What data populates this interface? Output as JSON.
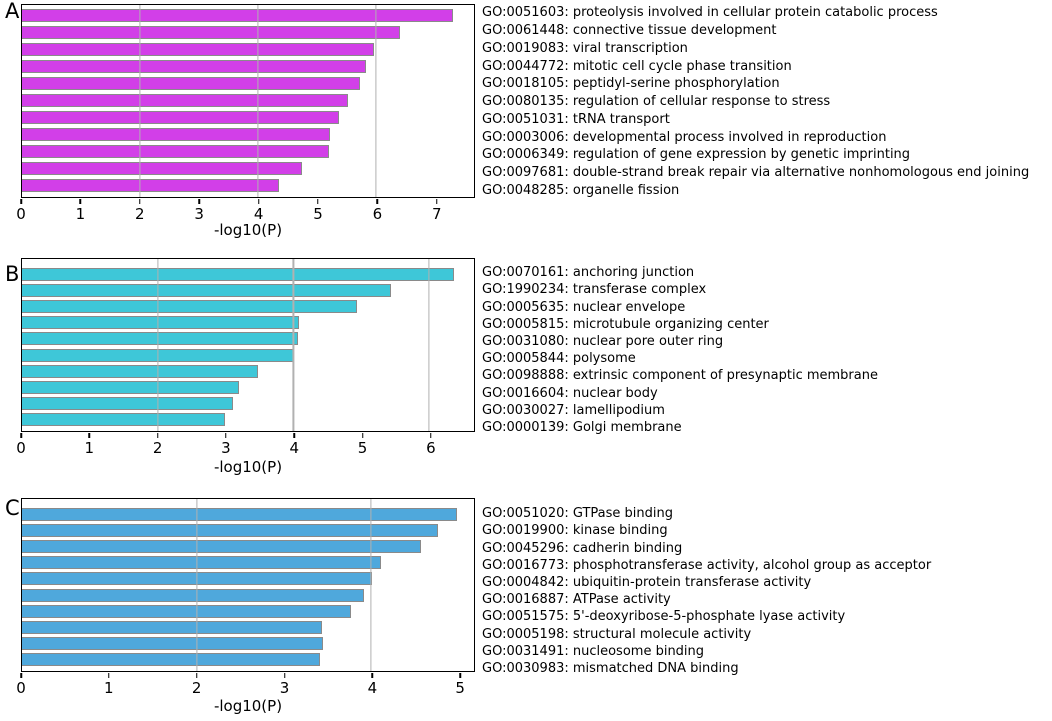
{
  "figure": {
    "background": "#ffffff",
    "frame_color": "#000000",
    "grid_color": "#b1b1b1",
    "bar_edge_color": "#8a8a8a"
  },
  "chart_data": [
    {
      "type": "bar",
      "panel": "A",
      "orientation": "horizontal",
      "xlabel": "-log10(P)",
      "bar_color": "#d23fe8",
      "xlim": [
        0,
        7.66
      ],
      "x_ticks": [
        0,
        1,
        2,
        3,
        4,
        5,
        6,
        7
      ],
      "gridline_x": [
        2,
        4,
        6
      ],
      "grid": "vertical gridlines drawn above bars",
      "legend": "none",
      "categories": [
        "GO:0051603: proteolysis involved in cellular protein catabolic process",
        "GO:0061448: connective tissue development",
        "GO:0019083: viral transcription",
        "GO:0044772: mitotic cell cycle phase transition",
        "GO:0018105: peptidyl-serine phosphorylation",
        "GO:0080135: regulation of cellular response to stress",
        "GO:0051031: tRNA transport",
        "GO:0003006: developmental process involved in reproduction",
        "GO:0006349: regulation of gene expression by genetic imprinting",
        "GO:0097681: double-strand break repair via alternative nonhomologous end joining",
        "GO:0048285: organelle fission"
      ],
      "values": [
        7.3,
        6.4,
        5.96,
        5.83,
        5.72,
        5.52,
        5.38,
        5.22,
        5.2,
        4.75,
        4.36
      ]
    },
    {
      "type": "bar",
      "panel": "B",
      "orientation": "horizontal",
      "xlabel": "-log10(P)",
      "bar_color": "#3ec7d8",
      "xlim": [
        0,
        6.66
      ],
      "x_ticks": [
        0,
        1,
        2,
        3,
        4,
        5,
        6
      ],
      "gridline_x": [
        2,
        4,
        6
      ],
      "grid": "vertical gridlines drawn above bars",
      "legend": "none",
      "categories": [
        "GO:0070161: anchoring junction",
        "GO:1990234: transferase complex",
        "GO:0005635: nuclear envelope",
        "GO:0005815: microtubule organizing center",
        "GO:0031080: nuclear pore outer ring",
        "GO:0005844: polysome",
        "GO:0098888: extrinsic component of presynaptic membrane",
        "GO:0016604: nuclear body",
        "GO:0030027: lamellipodium",
        "GO:0000139: Golgi membrane"
      ],
      "values": [
        6.36,
        5.43,
        4.94,
        4.08,
        4.07,
        4.01,
        3.47,
        3.2,
        3.11,
        2.99
      ]
    },
    {
      "type": "bar",
      "panel": "C",
      "orientation": "horizontal",
      "xlabel": "-log10(P)",
      "bar_color": "#4fa8dc",
      "xlim": [
        0,
        5.18
      ],
      "x_ticks": [
        0,
        1,
        2,
        3,
        4,
        5
      ],
      "gridline_x": [
        2,
        4
      ],
      "grid": "vertical gridlines drawn above bars",
      "legend": "none",
      "categories": [
        "GO:0051020: GTPase binding",
        "GO:0019900: kinase binding",
        "GO:0045296: cadherin binding",
        "GO:0016773: phosphotransferase activity, alcohol group as acceptor",
        "GO:0004842: ubiquitin-protein transferase activity",
        "GO:0016887: ATPase activity",
        "GO:0051575: 5'-deoxyribose-5-phosphate lyase activity",
        "GO:0005198: structural molecule activity",
        "GO:0031491: nucleosome binding",
        "GO:0030983: mismatched DNA binding"
      ],
      "values": [
        4.99,
        4.77,
        4.57,
        4.11,
        4.01,
        3.92,
        3.77,
        3.44,
        3.45,
        3.42
      ]
    }
  ]
}
